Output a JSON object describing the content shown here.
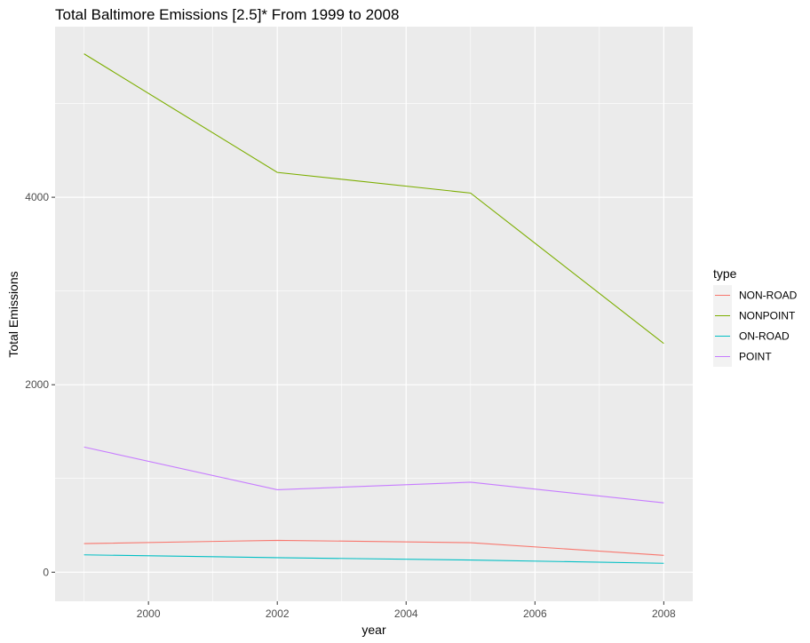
{
  "chart_data": {
    "type": "line",
    "title": "Total Baltimore Emissions [2.5]* From 1999 to 2008",
    "xlabel": "year",
    "ylabel": "Total Emissions",
    "x": [
      1999,
      2002,
      2005,
      2008
    ],
    "xlim": [
      1998.55,
      2008.45
    ],
    "ylim": [
      -310,
      5820
    ],
    "x_ticks": [
      2000,
      2002,
      2004,
      2006,
      2008
    ],
    "x_tick_labels": [
      "2000",
      "2002",
      "2004",
      "2006",
      "2008"
    ],
    "y_ticks": [
      0,
      2000,
      4000
    ],
    "y_tick_labels": [
      "0",
      "2000",
      "4000"
    ],
    "grid": true,
    "legend": {
      "title": "type",
      "placement": "right"
    },
    "series": [
      {
        "name": "NON-ROAD",
        "color": "#F8766D",
        "values": [
          305,
          340,
          315,
          180
        ]
      },
      {
        "name": "NONPOINT",
        "color": "#7CAE00",
        "values": [
          5530,
          4265,
          4045,
          2440
        ]
      },
      {
        "name": "ON-ROAD",
        "color": "#00BFC4",
        "values": [
          185,
          155,
          130,
          95
        ]
      },
      {
        "name": "POINT",
        "color": "#C77CFF",
        "values": [
          1335,
          880,
          960,
          740
        ]
      }
    ]
  }
}
